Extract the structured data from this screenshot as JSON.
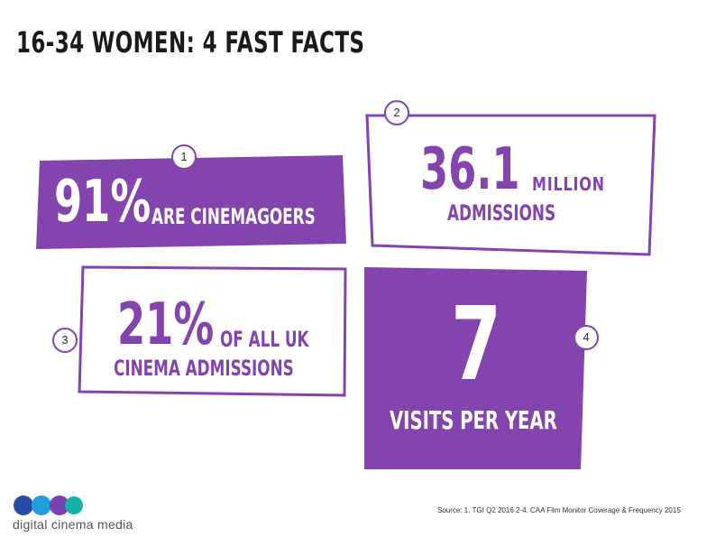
{
  "title": "16-34 WOMEN: 4 FAST FACTS",
  "colors": {
    "accent": "#8444ad",
    "text": "#1a1a1a"
  },
  "facts": [
    {
      "badge": "1",
      "value": "91%",
      "label": "ARE CINEMAGOERS"
    },
    {
      "badge": "2",
      "value": "36.1",
      "unit": "MILLION",
      "label": "ADMISSIONS"
    },
    {
      "badge": "3",
      "value": "21%",
      "label_line1": "OF ALL UK",
      "label_line2": "CINEMA ADMISSIONS"
    },
    {
      "badge": "4",
      "value": "7",
      "label": "VISITS PER YEAR"
    }
  ],
  "source": "Source: 1. TGI Q2 2016 2-4. CAA Film Monitor Coverage & Frequency 2015",
  "logo": {
    "text": "digital cinema media",
    "icon": "dcm-logo-icon"
  }
}
